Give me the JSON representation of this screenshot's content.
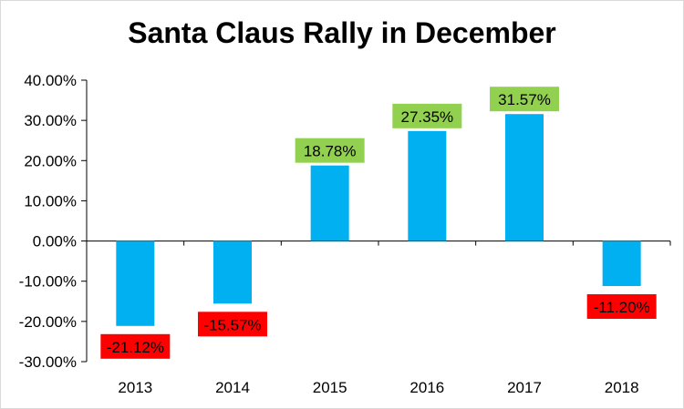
{
  "chart_data": {
    "type": "bar",
    "title": "Santa Claus Rally in December",
    "categories": [
      "2013",
      "2014",
      "2015",
      "2016",
      "2017",
      "2018"
    ],
    "values": [
      -21.12,
      -15.57,
      18.78,
      27.35,
      31.57,
      -11.2
    ],
    "data_labels": [
      "-21.12%",
      "-15.57%",
      "18.78%",
      "27.35%",
      "31.57%",
      "-11.20%"
    ],
    "ylim": [
      -30,
      40
    ],
    "yticks": [
      40,
      30,
      20,
      10,
      0,
      -10,
      -20,
      -30
    ],
    "ytick_labels": [
      "40.00%",
      "30.00%",
      "20.00%",
      "10.00%",
      "0.00%",
      "-10.00%",
      "-20.00%",
      "-30.00%"
    ],
    "xlabel": "",
    "ylabel": "",
    "grid": false,
    "colors": {
      "bar": "#00b0f0",
      "positive_label_bg": "#92d050",
      "negative_label_bg": "#ff0000"
    }
  }
}
